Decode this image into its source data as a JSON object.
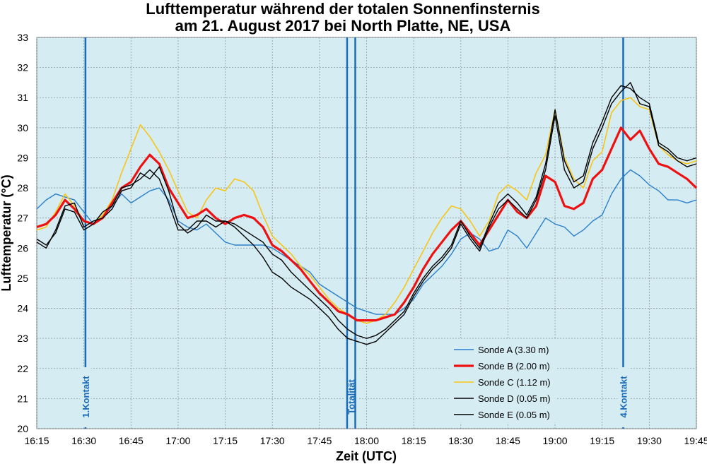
{
  "chart_data": {
    "type": "line",
    "title": "Lufttemperatur während der totalen Sonnenfinsternis",
    "subtitle": "am 21. August 2017 bei North Platte, NE, USA",
    "xlabel": "Zeit (UTC)",
    "ylabel": "Lufttemperatur (°C)",
    "x_unit": "minutes after 16:15 UTC",
    "xlim": [
      0,
      210
    ],
    "ylim": [
      20,
      33
    ],
    "x_ticks": [
      {
        "x": 0,
        "label": "16:15"
      },
      {
        "x": 15,
        "label": "16:30"
      },
      {
        "x": 30,
        "label": "16:45"
      },
      {
        "x": 45,
        "label": "17:00"
      },
      {
        "x": 60,
        "label": "17:15"
      },
      {
        "x": 75,
        "label": "17:30"
      },
      {
        "x": 90,
        "label": "17:45"
      },
      {
        "x": 105,
        "label": "18:00"
      },
      {
        "x": 120,
        "label": "18:15"
      },
      {
        "x": 135,
        "label": "18:30"
      },
      {
        "x": 150,
        "label": "18:45"
      },
      {
        "x": 165,
        "label": "19:00"
      },
      {
        "x": 180,
        "label": "19:15"
      },
      {
        "x": 195,
        "label": "19:30"
      },
      {
        "x": 210,
        "label": "19:45"
      }
    ],
    "y_ticks": [
      20,
      21,
      22,
      23,
      24,
      25,
      26,
      27,
      28,
      29,
      30,
      31,
      32,
      33
    ],
    "grid": true,
    "legend_position": "bottom-right",
    "background_color": "#d6ecf3",
    "events": [
      {
        "label": "1.Kontakt",
        "x": [
          15.5
        ],
        "color": "#1a6bb8"
      },
      {
        "label": "Totalität",
        "x": [
          98.8,
          101.4
        ],
        "color": "#1a6bb8"
      },
      {
        "label": "4.Kontakt",
        "x": [
          186.7
        ],
        "color": "#1a6bb8"
      }
    ],
    "series": [
      {
        "name": "Sonde A (3.30 m)",
        "color": "#2a7fc9",
        "width": 1.4,
        "x": [
          0,
          3,
          6,
          9,
          12,
          15,
          18,
          21,
          24,
          27,
          30,
          33,
          36,
          39,
          42,
          45,
          48,
          51,
          54,
          57,
          60,
          63,
          66,
          69,
          72,
          75,
          78,
          81,
          84,
          87,
          90,
          93,
          96,
          99,
          102,
          105,
          108,
          111,
          114,
          117,
          120,
          123,
          126,
          129,
          132,
          135,
          138,
          141,
          144,
          147,
          150,
          153,
          156,
          159,
          162,
          165,
          168,
          171,
          174,
          177,
          180,
          183,
          186,
          189,
          192,
          195,
          198,
          201,
          204,
          207,
          210
        ],
        "y": [
          27.3,
          27.6,
          27.8,
          27.7,
          27.6,
          27.2,
          26.8,
          27.0,
          27.4,
          27.8,
          27.5,
          27.7,
          27.9,
          28.0,
          27.6,
          26.9,
          26.7,
          26.6,
          26.8,
          26.5,
          26.2,
          26.1,
          26.1,
          26.1,
          26.1,
          26.0,
          25.8,
          25.6,
          25.4,
          25.2,
          24.8,
          24.6,
          24.4,
          24.2,
          24.0,
          23.9,
          23.8,
          23.8,
          23.8,
          24.0,
          24.3,
          24.8,
          25.1,
          25.4,
          25.8,
          26.3,
          26.5,
          26.3,
          25.9,
          26.0,
          26.6,
          26.4,
          26.0,
          26.5,
          27.0,
          26.8,
          26.7,
          26.4,
          26.6,
          26.9,
          27.1,
          27.8,
          28.3,
          28.6,
          28.4,
          28.1,
          27.9,
          27.6,
          27.6,
          27.5,
          27.6
        ]
      },
      {
        "name": "Sonde B (2.00 m)",
        "color": "#ee1111",
        "width": 3.2,
        "x": [
          0,
          3,
          6,
          9,
          12,
          15,
          18,
          21,
          24,
          27,
          30,
          33,
          36,
          39,
          42,
          45,
          48,
          51,
          54,
          57,
          60,
          63,
          66,
          69,
          72,
          75,
          78,
          81,
          84,
          87,
          90,
          93,
          96,
          99,
          102,
          105,
          108,
          111,
          114,
          117,
          120,
          123,
          126,
          129,
          132,
          135,
          138,
          141,
          144,
          147,
          150,
          153,
          156,
          159,
          162,
          165,
          168,
          171,
          174,
          177,
          180,
          183,
          186,
          189,
          192,
          195,
          198,
          201,
          204,
          207,
          210
        ],
        "y": [
          26.7,
          26.8,
          27.1,
          27.6,
          27.3,
          26.9,
          26.8,
          27.0,
          27.5,
          28.0,
          28.2,
          28.7,
          29.1,
          28.8,
          28.0,
          27.5,
          27.0,
          27.1,
          27.3,
          27.0,
          26.8,
          27.0,
          27.1,
          27.0,
          26.7,
          26.1,
          25.9,
          25.6,
          25.3,
          24.9,
          24.5,
          24.2,
          23.9,
          23.8,
          23.6,
          23.6,
          23.6,
          23.7,
          23.8,
          24.2,
          24.7,
          25.3,
          25.8,
          26.2,
          26.6,
          26.9,
          26.5,
          26.1,
          26.6,
          27.1,
          27.6,
          27.2,
          27.0,
          27.4,
          28.4,
          28.2,
          27.4,
          27.3,
          27.5,
          28.3,
          28.6,
          29.3,
          30.0,
          29.6,
          29.9,
          29.3,
          28.8,
          28.7,
          28.5,
          28.3,
          28.0
        ]
      },
      {
        "name": "Sonde C (1.12 m)",
        "color": "#f7c515",
        "width": 1.6,
        "x": [
          0,
          3,
          6,
          9,
          12,
          15,
          18,
          21,
          24,
          27,
          30,
          33,
          36,
          39,
          42,
          45,
          48,
          51,
          54,
          57,
          60,
          63,
          66,
          69,
          72,
          75,
          78,
          81,
          84,
          87,
          90,
          93,
          96,
          99,
          102,
          105,
          108,
          111,
          114,
          117,
          120,
          123,
          126,
          129,
          132,
          135,
          138,
          141,
          144,
          147,
          150,
          153,
          156,
          159,
          162,
          165,
          168,
          171,
          174,
          177,
          180,
          183,
          186,
          189,
          192,
          195,
          198,
          201,
          204,
          207,
          210
        ],
        "y": [
          26.6,
          26.7,
          27.2,
          27.8,
          27.4,
          26.9,
          26.8,
          27.1,
          27.6,
          28.5,
          29.3,
          30.1,
          29.7,
          29.2,
          28.6,
          27.9,
          27.2,
          27.0,
          27.6,
          28.0,
          27.9,
          28.3,
          28.2,
          27.9,
          27.1,
          26.4,
          26.1,
          25.8,
          25.4,
          25.1,
          24.7,
          24.3,
          24.0,
          23.8,
          23.6,
          23.5,
          23.6,
          23.8,
          24.2,
          24.7,
          25.3,
          25.9,
          26.5,
          27.0,
          27.4,
          27.3,
          26.9,
          26.4,
          26.9,
          27.8,
          28.1,
          27.9,
          27.6,
          28.5,
          29.1,
          30.6,
          29.0,
          28.3,
          28.0,
          28.9,
          29.2,
          30.5,
          30.9,
          31.0,
          30.7,
          30.6,
          29.4,
          29.1,
          28.9,
          28.8,
          28.9
        ]
      },
      {
        "name": "Sonde D (0.05 m)",
        "color": "#000000",
        "width": 1.4,
        "x": [
          0,
          3,
          6,
          9,
          12,
          15,
          18,
          21,
          24,
          27,
          30,
          33,
          36,
          39,
          42,
          45,
          48,
          51,
          54,
          57,
          60,
          63,
          66,
          69,
          72,
          75,
          78,
          81,
          84,
          87,
          90,
          93,
          96,
          99,
          102,
          105,
          108,
          111,
          114,
          117,
          120,
          123,
          126,
          129,
          132,
          135,
          138,
          141,
          144,
          147,
          150,
          153,
          156,
          159,
          162,
          165,
          168,
          171,
          174,
          177,
          180,
          183,
          186,
          189,
          192,
          195,
          198,
          201,
          204,
          207,
          210
        ],
        "y": [
          26.2,
          26.0,
          26.6,
          27.4,
          27.5,
          26.7,
          26.9,
          27.0,
          27.3,
          27.9,
          28.0,
          28.5,
          28.3,
          28.7,
          27.9,
          26.8,
          26.5,
          26.7,
          27.1,
          26.9,
          26.9,
          26.8,
          26.6,
          26.4,
          26.2,
          25.8,
          25.6,
          25.2,
          24.9,
          24.6,
          24.3,
          24.0,
          23.6,
          23.3,
          23.1,
          23.0,
          23.1,
          23.3,
          23.6,
          23.9,
          24.5,
          25.0,
          25.4,
          25.7,
          26.1,
          26.9,
          26.4,
          26.0,
          26.8,
          27.5,
          27.8,
          27.5,
          27.1,
          27.7,
          28.8,
          30.6,
          28.9,
          28.2,
          28.4,
          29.5,
          30.2,
          31.0,
          31.4,
          31.3,
          31.0,
          30.8,
          29.5,
          29.3,
          29.0,
          28.9,
          29.0
        ]
      },
      {
        "name": "Sonde E (0.05 m)",
        "color": "#000000",
        "width": 1.4,
        "x": [
          0,
          3,
          6,
          9,
          12,
          15,
          18,
          21,
          24,
          27,
          30,
          33,
          36,
          39,
          42,
          45,
          48,
          51,
          54,
          57,
          60,
          63,
          66,
          69,
          72,
          75,
          78,
          81,
          84,
          87,
          90,
          93,
          96,
          99,
          102,
          105,
          108,
          111,
          114,
          117,
          120,
          123,
          126,
          129,
          132,
          135,
          138,
          141,
          144,
          147,
          150,
          153,
          156,
          159,
          162,
          165,
          168,
          171,
          174,
          177,
          180,
          183,
          186,
          189,
          192,
          195,
          198,
          201,
          204,
          207,
          210
        ],
        "y": [
          26.3,
          26.1,
          26.5,
          27.3,
          27.2,
          26.6,
          26.8,
          27.2,
          27.4,
          28.0,
          28.1,
          28.3,
          28.6,
          28.3,
          27.5,
          26.6,
          26.6,
          26.9,
          26.9,
          26.7,
          26.9,
          26.7,
          26.4,
          26.1,
          25.7,
          25.2,
          25.0,
          24.7,
          24.5,
          24.3,
          24.0,
          23.7,
          23.3,
          23.0,
          22.9,
          22.8,
          22.9,
          23.2,
          23.5,
          23.8,
          24.4,
          24.9,
          25.3,
          25.6,
          26.0,
          26.8,
          26.3,
          25.9,
          26.7,
          27.3,
          27.6,
          27.3,
          27.0,
          27.6,
          28.6,
          30.4,
          28.6,
          28.0,
          28.2,
          29.3,
          30.0,
          30.8,
          31.2,
          31.5,
          30.8,
          30.7,
          29.4,
          29.2,
          28.9,
          28.7,
          28.8
        ]
      }
    ]
  }
}
